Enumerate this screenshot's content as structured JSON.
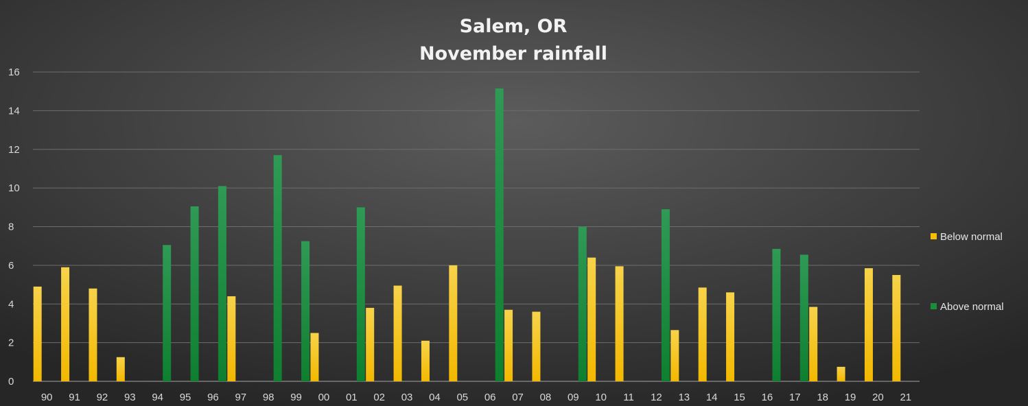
{
  "chart_data": {
    "type": "bar",
    "title": [
      "Salem, OR",
      "November rainfall"
    ],
    "xlabel": "",
    "ylabel": "",
    "ylim": [
      0,
      16
    ],
    "yticks": [
      0,
      2,
      4,
      6,
      8,
      10,
      12,
      14,
      16
    ],
    "grid": true,
    "legend_position": "right",
    "categories": [
      "90",
      "91",
      "92",
      "93",
      "94",
      "95",
      "96",
      "97",
      "98",
      "99",
      "00",
      "01",
      "02",
      "03",
      "04",
      "05",
      "06",
      "07",
      "08",
      "09",
      "10",
      "11",
      "12",
      "13",
      "14",
      "15",
      "16",
      "17",
      "18",
      "19",
      "20",
      "21"
    ],
    "series": [
      {
        "name": "Below normal",
        "color": "#f5c000",
        "values": [
          4.9,
          5.9,
          4.8,
          1.25,
          null,
          null,
          null,
          4.4,
          null,
          null,
          2.5,
          null,
          3.8,
          4.95,
          2.1,
          6.0,
          null,
          3.7,
          3.6,
          null,
          6.4,
          5.95,
          null,
          2.65,
          4.85,
          4.6,
          null,
          null,
          3.85,
          0.75,
          5.85,
          5.5
        ]
      },
      {
        "name": "Above normal",
        "color": "#1a8c3a",
        "values": [
          null,
          null,
          null,
          null,
          7.05,
          9.05,
          10.1,
          null,
          11.7,
          7.25,
          null,
          9.0,
          null,
          null,
          null,
          null,
          15.15,
          null,
          null,
          8.0,
          null,
          null,
          8.9,
          null,
          null,
          null,
          6.85,
          6.55,
          null,
          null,
          null,
          null
        ]
      }
    ]
  }
}
